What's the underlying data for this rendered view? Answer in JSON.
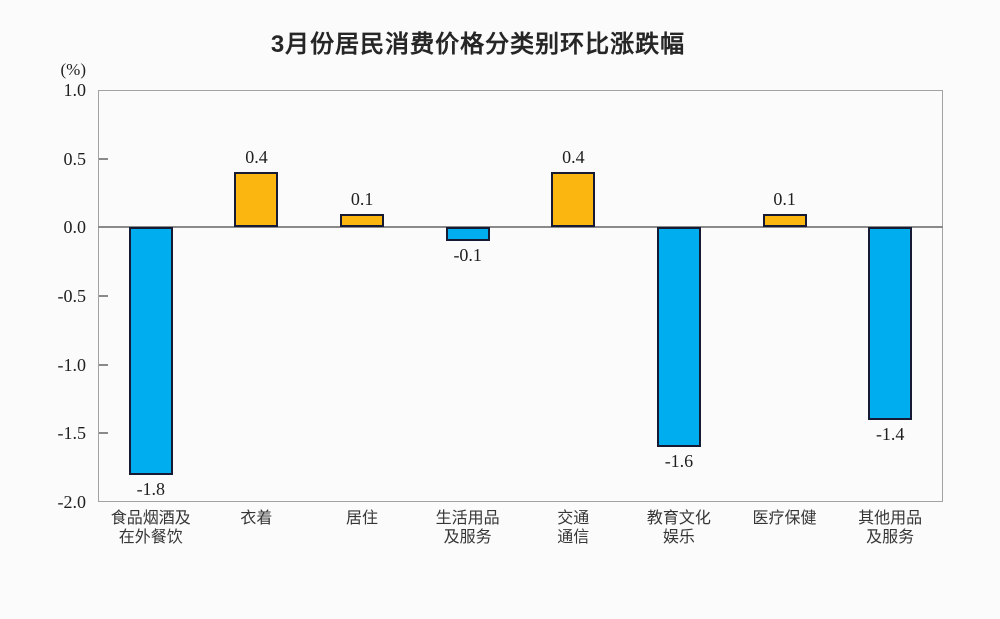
{
  "header": {
    "title": "3月份居民消费价格分类别环比涨跌幅"
  },
  "chart_data": {
    "type": "bar",
    "title": "3月份居民消费价格分类别环比涨跌幅",
    "unit": "(%)",
    "xlabel": "",
    "ylabel": "(%)",
    "ylim": [
      -2.0,
      1.0
    ],
    "yticks": [
      1.0,
      0.5,
      0.0,
      -0.5,
      -1.0,
      -1.5,
      -2.0
    ],
    "ytick_labels": [
      "1.0",
      "0.5",
      "0.0",
      "-0.5",
      "-1.0",
      "-1.5",
      "-2.0"
    ],
    "categories": [
      [
        "食品烟酒及",
        "在外餐饮"
      ],
      [
        "衣着"
      ],
      [
        "居住"
      ],
      [
        "生活用品",
        "及服务"
      ],
      [
        "交通",
        "通信"
      ],
      [
        "教育文化",
        "娱乐"
      ],
      [
        "医疗保健"
      ],
      [
        "其他用品",
        "及服务"
      ]
    ],
    "values": [
      -1.8,
      0.4,
      0.1,
      -0.1,
      0.4,
      -1.6,
      0.1,
      -1.4
    ],
    "value_labels": [
      "-1.8",
      "0.4",
      "0.1",
      "-0.1",
      "0.4",
      "-1.6",
      "0.1",
      "-1.4"
    ],
    "bar_colors": {
      "positive": "#FBB70F",
      "negative": "#00AEEF",
      "border": "#171A33"
    },
    "axis_color": "#A2A2A2",
    "zero_line_color": "#8A8A8A",
    "grid": false,
    "legend": "none"
  }
}
